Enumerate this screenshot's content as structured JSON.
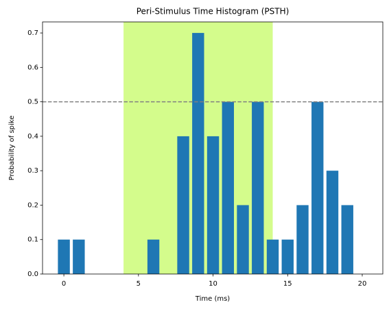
{
  "chart_data": {
    "type": "bar",
    "title": "Peri-Stimulus Time Histogram (PSTH)",
    "xlabel": "Time (ms)",
    "ylabel": "Probability of spike",
    "x": [
      0,
      1,
      2,
      3,
      4,
      5,
      6,
      7,
      8,
      9,
      10,
      11,
      12,
      13,
      14,
      15,
      16,
      17,
      18,
      19
    ],
    "values": [
      0.1,
      0.1,
      0,
      0,
      0,
      0,
      0.1,
      0,
      0.4,
      0.7,
      0.4,
      0.5,
      0.2,
      0.5,
      0.1,
      0.1,
      0.2,
      0.5,
      0.3,
      0.2
    ],
    "color": "#1f77b4",
    "bar_width": 0.8,
    "xlim": [
      -1.43,
      21.38
    ],
    "xticks": [
      0,
      5,
      10,
      15,
      20
    ],
    "ylim": [
      0,
      0.732
    ],
    "yticks": [
      {
        "value": 0,
        "label": "0.0"
      },
      0.1,
      0.2,
      0.3,
      0.4,
      0.5,
      0.6,
      0.7
    ],
    "span": {
      "xmin": 4,
      "xmax": 14,
      "color": "#d4fc8c"
    },
    "hline": {
      "y": 0.5,
      "color": "#808080"
    }
  }
}
